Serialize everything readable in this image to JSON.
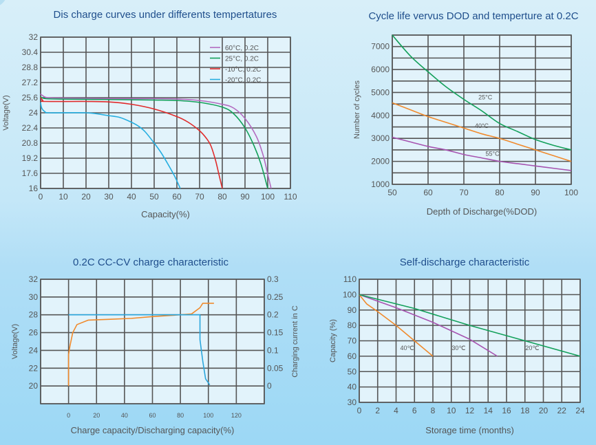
{
  "colors": {
    "title": "#1f4e8c",
    "c60": "#b36ac0",
    "c25": "#13a05a",
    "cm10": "#e02a2a",
    "cm20": "#25aee0",
    "orange": "#f08a2c",
    "purple": "#a653b0",
    "green": "#13a05a",
    "blue": "#2aa6dc"
  },
  "chart_data": [
    {
      "id": "discharge",
      "type": "line",
      "title": "Dis charge curves under differents tempertatures",
      "xlabel": "Capacity(%)",
      "ylabel": "Voltage(V)",
      "xlim": [
        0,
        110
      ],
      "ylim": [
        16,
        32
      ],
      "xticks": [
        0,
        10,
        20,
        30,
        40,
        50,
        60,
        70,
        80,
        90,
        100,
        110
      ],
      "yticks": [
        16,
        17.6,
        19.2,
        20.8,
        22.4,
        24,
        25.6,
        27.2,
        28.8,
        30.4,
        32
      ],
      "ytick_labels": [
        "16",
        "17.6",
        "19.2",
        "20.8",
        "22.4",
        "24",
        "25.6",
        "27.2",
        "28.8",
        "30.4",
        "32"
      ],
      "grid": true,
      "legend_position": "top-right",
      "series": [
        {
          "name": "60°C, 0.2C",
          "color_key": "c60",
          "points": [
            [
              0,
              26.0
            ],
            [
              1,
              25.8
            ],
            [
              3,
              25.6
            ],
            [
              10,
              25.55
            ],
            [
              30,
              25.5
            ],
            [
              50,
              25.5
            ],
            [
              60,
              25.45
            ],
            [
              70,
              25.3
            ],
            [
              80,
              24.9
            ],
            [
              85,
              24.5
            ],
            [
              90,
              23.4
            ],
            [
              95,
              21.5
            ],
            [
              98,
              19.5
            ],
            [
              100,
              17.5
            ],
            [
              101.5,
              16
            ]
          ]
        },
        {
          "name": "25°C, 0.2C",
          "color_key": "c25",
          "points": [
            [
              0,
              25.7
            ],
            [
              2,
              25.5
            ],
            [
              10,
              25.45
            ],
            [
              30,
              25.4
            ],
            [
              50,
              25.35
            ],
            [
              60,
              25.3
            ],
            [
              70,
              25.1
            ],
            [
              80,
              24.6
            ],
            [
              85,
              23.9
            ],
            [
              90,
              22.4
            ],
            [
              94,
              20.5
            ],
            [
              97,
              18.6
            ],
            [
              100,
              16
            ]
          ]
        },
        {
          "name": "-10°C, 0.2C",
          "color_key": "cm10",
          "points": [
            [
              0,
              25.6
            ],
            [
              1,
              25.3
            ],
            [
              2,
              25.2
            ],
            [
              20,
              25.2
            ],
            [
              30,
              25.15
            ],
            [
              40,
              24.9
            ],
            [
              50,
              24.4
            ],
            [
              60,
              23.6
            ],
            [
              65,
              23.0
            ],
            [
              70,
              22.1
            ],
            [
              73,
              21.3
            ],
            [
              75,
              20.5
            ],
            [
              77,
              19.0
            ],
            [
              78.5,
              17.5
            ],
            [
              80,
              16
            ]
          ]
        },
        {
          "name": "-20°C, 0.2C",
          "color_key": "cm20",
          "points": [
            [
              0,
              25.1
            ],
            [
              0.5,
              24.5
            ],
            [
              2,
              24.1
            ],
            [
              4,
              24.0
            ],
            [
              20,
              24.0
            ],
            [
              30,
              23.7
            ],
            [
              35,
              23.5
            ],
            [
              40,
              23.0
            ],
            [
              43,
              22.6
            ],
            [
              46,
              22.0
            ],
            [
              50,
              20.8
            ],
            [
              53,
              19.8
            ],
            [
              56,
              18.6
            ],
            [
              59,
              17.3
            ],
            [
              61.5,
              16
            ]
          ]
        }
      ]
    },
    {
      "id": "cycle-life",
      "type": "line",
      "title": "Cycle life vervus DOD and temperture at 0.2C",
      "xlabel": "Depth of Discharge(%DOD)",
      "ylabel": "Number of cycles",
      "xlim": [
        50,
        100
      ],
      "ylim": [
        1000,
        7500
      ],
      "xticks": [
        50,
        60,
        70,
        80,
        90,
        100
      ],
      "yticks": [
        1000,
        2000,
        3000,
        4000,
        5000,
        6000,
        7000
      ],
      "grid_y_step": 500,
      "grid": true,
      "series": [
        {
          "name": "25°C",
          "color_key": "c25",
          "points": [
            [
              50,
              7500
            ],
            [
              55,
              6600
            ],
            [
              60,
              5900
            ],
            [
              65,
              5250
            ],
            [
              70,
              4700
            ],
            [
              75,
              4200
            ],
            [
              80,
              3650
            ],
            [
              85,
              3300
            ],
            [
              90,
              2950
            ],
            [
              95,
              2700
            ],
            [
              100,
              2500
            ]
          ],
          "label_at": [
            76,
            4700
          ]
        },
        {
          "name": "40°C",
          "color_key": "orange",
          "points": [
            [
              50,
              4550
            ],
            [
              55,
              4250
            ],
            [
              60,
              3950
            ],
            [
              65,
              3700
            ],
            [
              70,
              3450
            ],
            [
              75,
              3200
            ],
            [
              80,
              3000
            ],
            [
              85,
              2750
            ],
            [
              90,
              2500
            ],
            [
              95,
              2250
            ],
            [
              100,
              2000
            ]
          ],
          "label_at": [
            75,
            3450
          ]
        },
        {
          "name": "55°C",
          "color_key": "purple",
          "points": [
            [
              50,
              3050
            ],
            [
              55,
              2850
            ],
            [
              60,
              2650
            ],
            [
              65,
              2500
            ],
            [
              70,
              2300
            ],
            [
              75,
              2150
            ],
            [
              80,
              2000
            ],
            [
              85,
              1900
            ],
            [
              90,
              1800
            ],
            [
              95,
              1700
            ],
            [
              100,
              1600
            ]
          ],
          "label_at": [
            78,
            2250
          ]
        }
      ]
    },
    {
      "id": "cc-cv",
      "type": "line",
      "title": "0.2C  CC-CV charge characteristic",
      "xlabel": "Charge capacity/Discharging capacity(%)",
      "ylabel": "Voltage(V)",
      "y2label": "Charging current in C",
      "xlim": [
        -20,
        140
      ],
      "ylim": [
        18,
        32
      ],
      "y2lim": [
        -0.05,
        0.3
      ],
      "xticks": [
        0,
        20,
        40,
        60,
        80,
        100,
        120
      ],
      "yticks": [
        20,
        22,
        24,
        26,
        28,
        30,
        32
      ],
      "y2ticks": [
        0,
        0.05,
        0.1,
        0.15,
        0.2,
        0.25,
        0.3
      ],
      "grid": true,
      "series": [
        {
          "name": "Voltage",
          "axis": "left",
          "color_key": "orange",
          "points": [
            [
              0,
              20
            ],
            [
              0,
              23.5
            ],
            [
              1,
              24.5
            ],
            [
              3,
              26
            ],
            [
              6,
              26.9
            ],
            [
              14,
              27.4
            ],
            [
              30,
              27.5
            ],
            [
              45,
              27.6
            ],
            [
              60,
              27.8
            ],
            [
              80,
              28.0
            ],
            [
              88,
              28.1
            ],
            [
              94,
              28.8
            ],
            [
              96,
              29.3
            ],
            [
              104,
              29.3
            ]
          ]
        },
        {
          "name": "Charging current",
          "axis": "right",
          "color_key": "blue",
          "points": [
            [
              0,
              0.2
            ],
            [
              94,
              0.2
            ],
            [
              94,
              0.13
            ],
            [
              96,
              0.07
            ],
            [
              98,
              0.02
            ],
            [
              101,
              0.003
            ]
          ]
        }
      ]
    },
    {
      "id": "self-discharge",
      "type": "line",
      "title": "Self-discharge characteristic",
      "xlabel": "Storage time (months)",
      "ylabel": "Capacity (%)",
      "xlim": [
        0,
        24
      ],
      "ylim": [
        30,
        110
      ],
      "xticks": [
        0,
        2,
        4,
        6,
        8,
        10,
        12,
        14,
        16,
        18,
        20,
        22,
        24
      ],
      "yticks": [
        30,
        40,
        50,
        60,
        70,
        80,
        90,
        100,
        110
      ],
      "grid": true,
      "series": [
        {
          "name": "40℃",
          "color_key": "orange",
          "points": [
            [
              0,
              100
            ],
            [
              0.8,
              94
            ],
            [
              2,
              89
            ],
            [
              4,
              80
            ],
            [
              6,
              70
            ],
            [
              8,
              60
            ]
          ],
          "label_at": [
            5.2,
            64
          ]
        },
        {
          "name": "30℃",
          "color_key": "purple",
          "points": [
            [
              0,
              100
            ],
            [
              4,
              91.5
            ],
            [
              8,
              82
            ],
            [
              12,
              71
            ],
            [
              15,
              60
            ]
          ],
          "label_at": [
            10.8,
            64
          ]
        },
        {
          "name": "20℃",
          "color_key": "green",
          "points": [
            [
              0,
              100
            ],
            [
              6,
              91
            ],
            [
              12,
              80
            ],
            [
              18,
              70
            ],
            [
              24,
              60
            ]
          ],
          "label_at": [
            18.8,
            64
          ]
        }
      ]
    }
  ]
}
